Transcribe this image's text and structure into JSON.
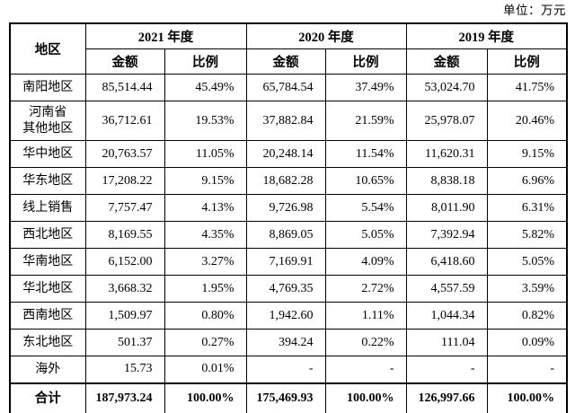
{
  "page": {
    "unit_label": "单位：万元"
  },
  "table": {
    "corner_header": "地区",
    "year_groups": [
      {
        "label": "2021 年度"
      },
      {
        "label": "2020 年度"
      },
      {
        "label": "2019 年度"
      }
    ],
    "sub_headers": {
      "amount": "金额",
      "ratio": "比例"
    },
    "rows": [
      {
        "region": "南阳地区",
        "cells": [
          "85,514.44",
          "45.49%",
          "65,784.54",
          "37.49%",
          "53,024.70",
          "41.75%"
        ]
      },
      {
        "region": "河南省\n其他地区",
        "cells": [
          "36,712.61",
          "19.53%",
          "37,882.84",
          "21.59%",
          "25,978.07",
          "20.46%"
        ]
      },
      {
        "region": "华中地区",
        "cells": [
          "20,763.57",
          "11.05%",
          "20,248.14",
          "11.54%",
          "11,620.31",
          "9.15%"
        ]
      },
      {
        "region": "华东地区",
        "cells": [
          "17,208.22",
          "9.15%",
          "18,682.28",
          "10.65%",
          "8,838.18",
          "6.96%"
        ]
      },
      {
        "region": "线上销售",
        "cells": [
          "7,757.47",
          "4.13%",
          "9,726.98",
          "5.54%",
          "8,011.90",
          "6.31%"
        ]
      },
      {
        "region": "西北地区",
        "cells": [
          "8,169.55",
          "4.35%",
          "8,869.05",
          "5.05%",
          "7,392.94",
          "5.82%"
        ]
      },
      {
        "region": "华南地区",
        "cells": [
          "6,152.00",
          "3.27%",
          "7,169.91",
          "4.09%",
          "6,418.60",
          "5.05%"
        ]
      },
      {
        "region": "华北地区",
        "cells": [
          "3,668.32",
          "1.95%",
          "4,769.35",
          "2.72%",
          "4,557.59",
          "3.59%"
        ]
      },
      {
        "region": "西南地区",
        "cells": [
          "1,509.97",
          "0.80%",
          "1,942.60",
          "1.11%",
          "1,044.34",
          "0.82%"
        ]
      },
      {
        "region": "东北地区",
        "cells": [
          "501.37",
          "0.27%",
          "394.24",
          "0.22%",
          "111.04",
          "0.09%"
        ]
      },
      {
        "region": "海外",
        "cells": [
          "15.73",
          "0.01%",
          "-",
          "-",
          "-",
          "-"
        ]
      }
    ],
    "total_row": {
      "region": "合计",
      "cells": [
        "187,973.24",
        "100.00%",
        "175,469.93",
        "100.00%",
        "126,997.66",
        "100.00%"
      ]
    }
  }
}
